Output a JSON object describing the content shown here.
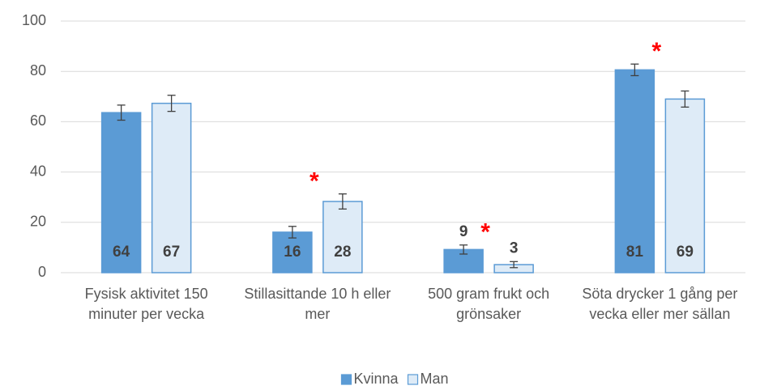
{
  "chart_data": {
    "type": "bar",
    "categories": [
      "Fysisk aktivitet 150 minuter per vecka",
      "Stillasittande 10 h eller mer",
      "500 gram frukt och grönsaker",
      "Söta drycker 1 gång per vecka eller mer sällan"
    ],
    "series": [
      {
        "name": "Kvinna",
        "color": "#5b9bd5",
        "edge": "#5b9bd5",
        "values": [
          63.6,
          16.1,
          9.2,
          80.6
        ],
        "value_labels": [
          "64",
          "16",
          "9",
          "81"
        ],
        "errors": [
          3,
          2.3,
          1.8,
          2.3
        ]
      },
      {
        "name": "Man",
        "color": "#deebf7",
        "edge": "#5b9bd5",
        "values": [
          67.3,
          28.3,
          3.2,
          69.0
        ],
        "value_labels": [
          "67",
          "28",
          "3",
          "69"
        ],
        "errors": [
          3.2,
          3,
          1.2,
          3.2
        ]
      }
    ],
    "significance": [
      null,
      "*",
      "*",
      "*"
    ],
    "ylim": [
      0,
      100
    ],
    "yticks": [
      0,
      20,
      40,
      60,
      80,
      100
    ],
    "grid": true,
    "legend": "bottom"
  }
}
